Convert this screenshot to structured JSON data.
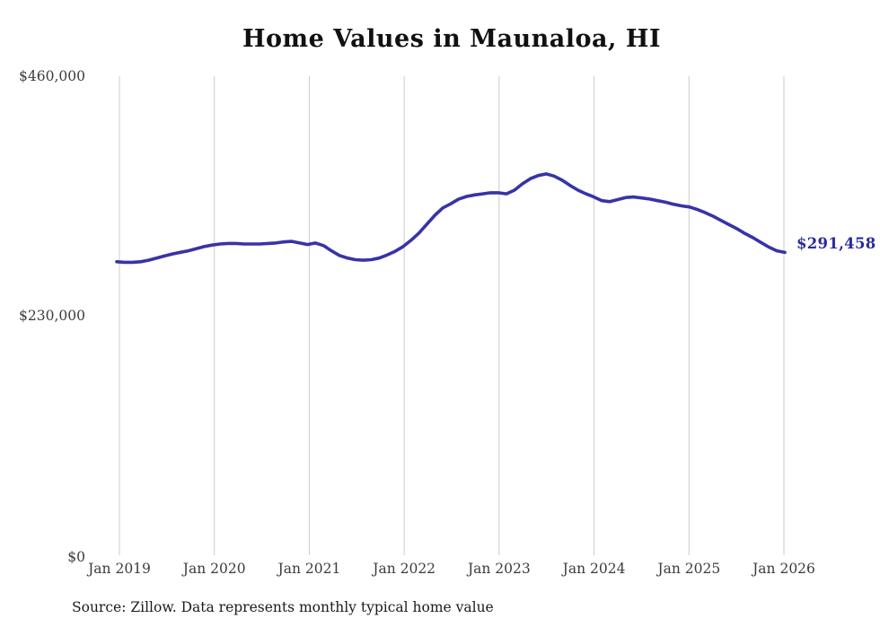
{
  "chart": {
    "title": "Home Values in Maunaloa, HI",
    "end_label": "$291,458",
    "source_note": "Source: Zillow. Data represents monthly typical home value"
  },
  "colors": {
    "line": "#3733a7",
    "end_label": "#2b2b9e",
    "gridline": "#cccccc",
    "title": "#111111",
    "tick": "#3c3c3c",
    "source": "#1b1b1b"
  },
  "chart_data": {
    "type": "line",
    "title": "Home Values in Maunaloa, HI",
    "xlabel": "",
    "ylabel": "",
    "ylim": [
      0,
      460000
    ],
    "grid": "vertical-only",
    "legend": "none",
    "yticks": [
      {
        "label": "$460,000",
        "value": 460000
      },
      {
        "label": "$230,000",
        "value": 230000
      },
      {
        "label": "$0",
        "value": 0
      }
    ],
    "xticks": [
      "Jan 2019",
      "Jan 2020",
      "Jan 2021",
      "Jan 2022",
      "Jan 2023",
      "Jan 2024",
      "Jan 2025",
      "Jan 2026"
    ],
    "x_start": "Jan 2019",
    "x_end": "Jan 2026",
    "x_interval": "monthly",
    "end_value": 291458,
    "series": [
      {
        "name": "Typical home value",
        "values": [
          282500,
          282000,
          282000,
          282500,
          284000,
          286000,
          288000,
          290000,
          291500,
          293000,
          295000,
          297000,
          298500,
          299500,
          300000,
          300000,
          299500,
          299500,
          299500,
          300000,
          300500,
          301500,
          302000,
          300500,
          299000,
          300500,
          298000,
          293000,
          288500,
          286000,
          284500,
          284000,
          284500,
          286000,
          289000,
          292500,
          297000,
          303000,
          310000,
          318500,
          327000,
          334000,
          338000,
          342500,
          345000,
          346500,
          347500,
          348500,
          348500,
          347500,
          351000,
          357000,
          362000,
          365000,
          366500,
          364500,
          360500,
          355500,
          351000,
          347500,
          344500,
          341000,
          340000,
          342000,
          344000,
          344500,
          343500,
          342500,
          341000,
          339500,
          337500,
          336000,
          335000,
          332500,
          329500,
          326000,
          322000,
          318000,
          314000,
          309500,
          305500,
          301000,
          296500,
          293000,
          291458
        ]
      }
    ]
  }
}
